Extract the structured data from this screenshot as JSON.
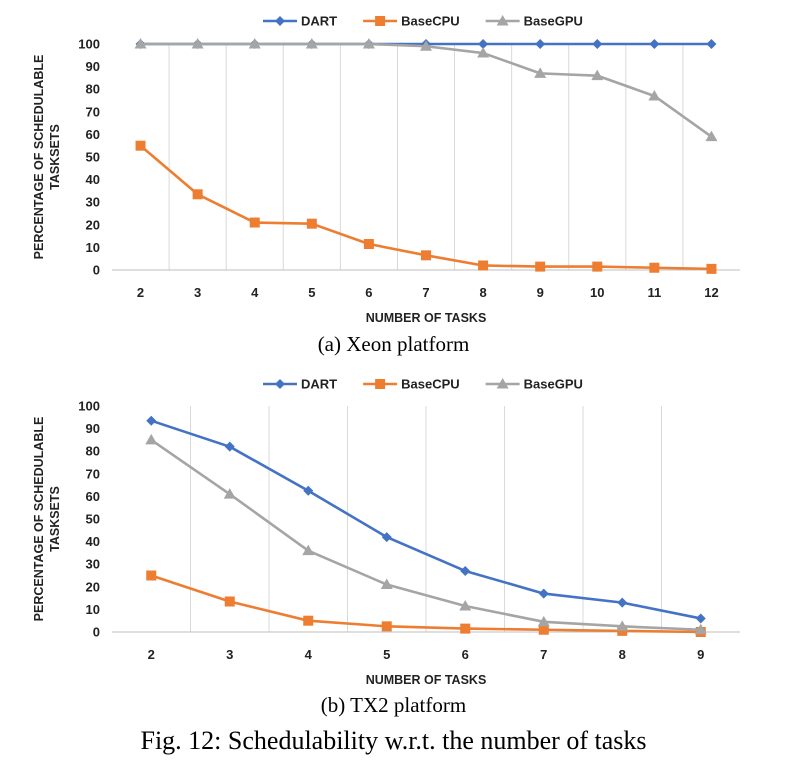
{
  "chart_data": [
    {
      "type": "line",
      "xlabel": "NUMBER OF TASKS",
      "ylabel": "PERCENTAGE OF SCHEDULABLE TASKSETS",
      "ylabel_lines": [
        "PERCENTAGE OF SCHEDULABLE",
        "TASKSETS"
      ],
      "ylim": [
        0,
        100
      ],
      "yticks": [
        0,
        10,
        20,
        30,
        40,
        50,
        60,
        70,
        80,
        90,
        100
      ],
      "grid": "vertical",
      "legend": "top",
      "categories": [
        "2",
        "3",
        "4",
        "5",
        "6",
        "7",
        "8",
        "9",
        "10",
        "11",
        "12"
      ],
      "series": [
        {
          "name": "DART",
          "color": "#4472C4",
          "marker": "diamond",
          "values": [
            100,
            100,
            100,
            100,
            100,
            100,
            100,
            100,
            100,
            100,
            100
          ]
        },
        {
          "name": "BaseCPU",
          "color": "#ED7D31",
          "marker": "square",
          "values": [
            55,
            33.5,
            21,
            20.5,
            11.5,
            6.5,
            2,
            1.5,
            1.5,
            1,
            0.5
          ]
        },
        {
          "name": "BaseGPU",
          "color": "#A5A5A5",
          "marker": "triangle",
          "values": [
            100,
            100,
            100,
            100,
            100,
            99,
            96,
            87,
            86,
            77,
            59
          ]
        }
      ]
    },
    {
      "type": "line",
      "xlabel": "NUMBER OF TASKS",
      "ylabel": "PERCENTAGE OF SCHEDULABLE TASKSETS",
      "ylabel_lines": [
        "PERCENTAGE OF SCHEDULABLE",
        "TASKSETS"
      ],
      "ylim": [
        0,
        100
      ],
      "yticks": [
        0,
        10,
        20,
        30,
        40,
        50,
        60,
        70,
        80,
        90,
        100
      ],
      "grid": "vertical",
      "legend": "top",
      "categories": [
        "2",
        "3",
        "4",
        "5",
        "6",
        "7",
        "8",
        "9"
      ],
      "series": [
        {
          "name": "DART",
          "color": "#4472C4",
          "marker": "diamond",
          "values": [
            93.5,
            82,
            62.5,
            42,
            27,
            17,
            13,
            6
          ]
        },
        {
          "name": "BaseCPU",
          "color": "#ED7D31",
          "marker": "square",
          "values": [
            25,
            13.5,
            5,
            2.5,
            1.5,
            1,
            0.5,
            0
          ]
        },
        {
          "name": "BaseGPU",
          "color": "#A5A5A5",
          "marker": "triangle",
          "values": [
            85,
            61,
            36,
            21,
            11.5,
            4.5,
            2.5,
            1
          ]
        }
      ]
    }
  ],
  "captions": {
    "sub_a": "(a) Xeon platform",
    "sub_b": "(b) TX2 platform",
    "figure": "Fig. 12: Schedulability w.r.t. the number of tasks"
  }
}
